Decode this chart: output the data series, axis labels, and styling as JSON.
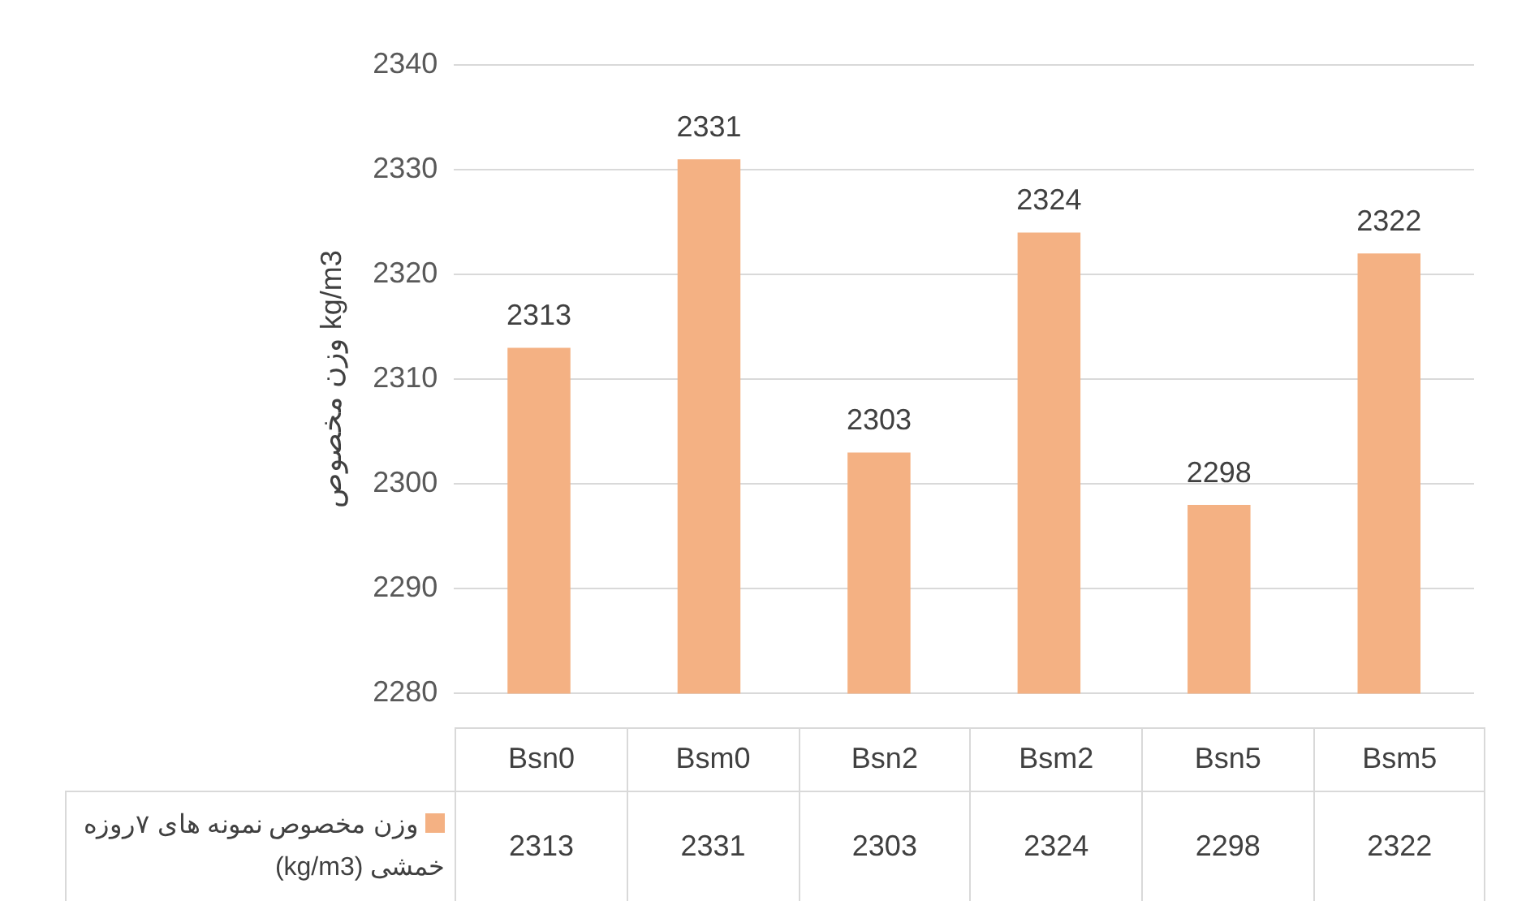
{
  "chart_data": {
    "type": "bar",
    "ylabel": "وزن مخصوص kg/m3",
    "categories": [
      "Bsn0",
      "Bsm0",
      "Bsn2",
      "Bsm2",
      "Bsn5",
      "Bsm5"
    ],
    "series": [
      {
        "name": "وزن مخصوص نمونه های ۷روزه خمشی (kg/m3)",
        "color": "#f4b183",
        "values": [
          2313,
          2331,
          2303,
          2324,
          2298,
          2322
        ],
        "value_labels": [
          "2313",
          "2331",
          "2303",
          "2324",
          "2298",
          "2322"
        ]
      }
    ],
    "ylim": [
      2280,
      2340
    ],
    "yticks": [
      2280,
      2290,
      2300,
      2310,
      2320,
      2330,
      2340
    ],
    "annotations": [
      "2313",
      "2331",
      "2303",
      "2324",
      "2298",
      "2322"
    ],
    "grid": "y",
    "legend": "bottom"
  }
}
